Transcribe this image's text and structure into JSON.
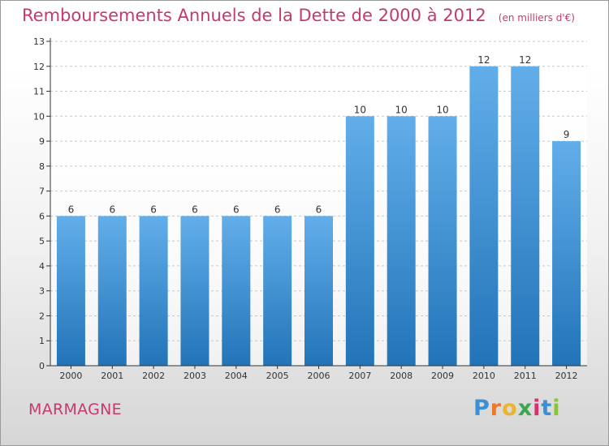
{
  "header": {
    "title": "Remboursements Annuels de la Dette de 2000 à 2012",
    "unit": "(en milliers d'€)"
  },
  "footer": {
    "commune": "MARMAGNE",
    "logo_letters": [
      "P",
      "r",
      "o",
      "x",
      "i",
      "t",
      "i"
    ],
    "logo_colors": [
      "#3a8fd6",
      "#e8792d",
      "#e8b52d",
      "#3aa84a",
      "#d6336c",
      "#3a8fd6",
      "#8ac43a"
    ]
  },
  "colors": {
    "accent": "#c43a70",
    "bar_top": "#62aeea",
    "bar_bottom": "#2274b8",
    "axis": "#333333"
  },
  "chart_data": {
    "type": "bar",
    "title": "Remboursements Annuels de la Dette de 2000 à 2012",
    "xlabel": "",
    "ylabel": "",
    "categories": [
      "2000",
      "2001",
      "2002",
      "2003",
      "2004",
      "2005",
      "2006",
      "2007",
      "2008",
      "2009",
      "2010",
      "2011",
      "2012"
    ],
    "values": [
      6,
      6,
      6,
      6,
      6,
      6,
      6,
      10,
      10,
      10,
      12,
      12,
      9
    ],
    "value_labels": [
      "6",
      "6",
      "6",
      "6",
      "6",
      "6",
      "6",
      "10",
      "10",
      "10",
      "12",
      "12",
      "9"
    ],
    "ylim": [
      0,
      13
    ],
    "yticks": [
      "0",
      "1",
      "2",
      "3",
      "4",
      "5",
      "6",
      "7",
      "8",
      "9",
      "10",
      "11",
      "12",
      "13"
    ],
    "grid": true
  }
}
